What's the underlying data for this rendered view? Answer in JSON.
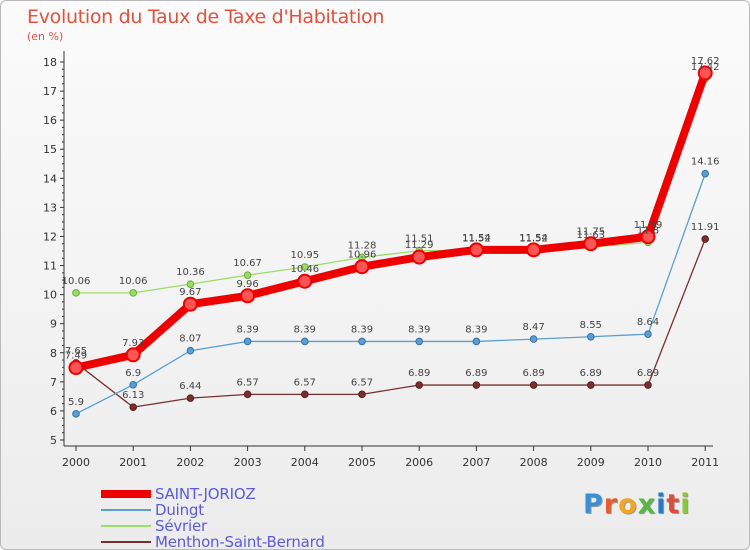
{
  "header": {
    "title": "Evolution du Taux de Taxe d'Habitation",
    "subtitle": "(en %)"
  },
  "brand": {
    "letters": [
      "P",
      "r",
      "o",
      "x",
      "i",
      "t",
      "i"
    ],
    "colors": [
      "#3b8fd6",
      "#e55d2d",
      "#f2a623",
      "#5ab543",
      "#2b7bc4",
      "#e04b3a",
      "#8cc63f"
    ]
  },
  "chart_data": {
    "type": "line",
    "title": "Evolution du Taux de Taxe d'Habitation",
    "subtitle": "(en %)",
    "xlabel": "",
    "ylabel": "",
    "x": [
      "2000",
      "2001",
      "2002",
      "2003",
      "2004",
      "2005",
      "2006",
      "2007",
      "2008",
      "2009",
      "2010",
      "2011"
    ],
    "ylim": [
      5,
      18
    ],
    "yticks": [
      5,
      6,
      7,
      8,
      9,
      10,
      11,
      12,
      13,
      14,
      15,
      16,
      17,
      18
    ],
    "grid": false,
    "legend_position": "bottom-left",
    "series": [
      {
        "name": "SAINT-JORIOZ",
        "color": "#ee0000",
        "values": [
          7.49,
          7.93,
          9.67,
          9.96,
          10.46,
          10.96,
          11.29,
          11.54,
          11.54,
          11.75,
          11.99,
          17.62
        ]
      },
      {
        "name": "Duingt",
        "color": "#5a9fd4",
        "values": [
          5.9,
          6.9,
          8.07,
          8.39,
          8.39,
          8.39,
          8.39,
          8.39,
          8.47,
          8.55,
          8.64,
          14.16
        ]
      },
      {
        "name": "Sévrier",
        "color": "#99dd66",
        "values": [
          10.06,
          10.06,
          10.36,
          10.67,
          10.95,
          11.28,
          11.51,
          11.52,
          11.52,
          11.63,
          11.8,
          17.42
        ]
      },
      {
        "name": "Menthon-Saint-Bernard",
        "color": "#7a2f2f",
        "values": [
          7.65,
          6.13,
          6.44,
          6.57,
          6.57,
          6.57,
          6.89,
          6.89,
          6.89,
          6.89,
          6.89,
          11.91
        ]
      }
    ],
    "data_labels": [
      [
        "7.49",
        "7.93",
        "9.67",
        "9.96",
        "10.46",
        "10.96",
        "11.29",
        "11.54",
        "11.54",
        "11.75",
        "11.99",
        "17.62"
      ],
      [
        "5.9",
        "6.9",
        "8.07",
        "8.39",
        "8.39",
        "8.39",
        "8.39",
        "8.39",
        "8.47",
        "8.55",
        "8.64",
        "14.16"
      ],
      [
        "10.06",
        "10.06",
        "10.36",
        "10.67",
        "10.95",
        "11.28",
        "11.51",
        "11.52",
        "11.52",
        "11.63",
        "11.8",
        "17.42"
      ],
      [
        "7.65",
        "6.13",
        "6.44",
        "6.57",
        "6.57",
        "6.57",
        "6.89",
        "6.89",
        "6.89",
        "6.89",
        "6.89",
        "11.91"
      ]
    ]
  }
}
